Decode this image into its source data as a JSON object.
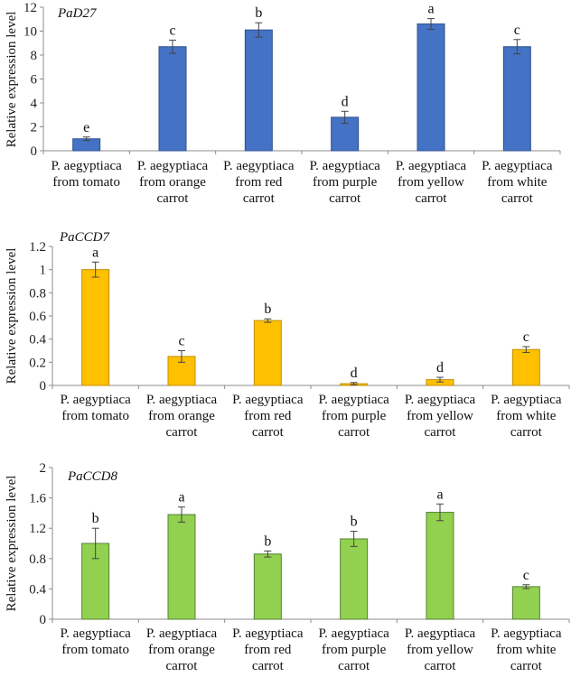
{
  "chart_data": [
    {
      "type": "bar",
      "title": "PaD27",
      "ylabel": "Relative  expression  level",
      "ylim": [
        0,
        12
      ],
      "yticks": [
        0,
        2,
        4,
        6,
        8,
        10,
        12
      ],
      "ytick_labels": [
        "0",
        "2",
        "4",
        "6",
        "8",
        "10",
        "12"
      ],
      "categories": [
        [
          "P. aegyptiaca",
          "from tomato"
        ],
        [
          "P. aegyptiaca",
          "from orange",
          "carrot"
        ],
        [
          "P. aegyptiaca",
          "from red",
          "carrot"
        ],
        [
          "P. aegyptiaca",
          "from purple",
          "carrot"
        ],
        [
          "P. aegyptiaca",
          "from yellow",
          "carrot"
        ],
        [
          "P. aegyptiaca",
          "from white",
          "carrot"
        ]
      ],
      "values": [
        1.0,
        8.7,
        10.1,
        2.8,
        10.6,
        8.7
      ],
      "errors": [
        0.15,
        0.55,
        0.6,
        0.5,
        0.45,
        0.6
      ],
      "letters": [
        "e",
        "c",
        "b",
        "d",
        "a",
        "c"
      ],
      "color": "#4472C4",
      "edge_color": "#2F528F",
      "grid": false
    },
    {
      "type": "bar",
      "title": "PaCCD7",
      "ylabel": "Relative  expression  level",
      "ylim": [
        0,
        1.2
      ],
      "yticks": [
        0,
        0.2,
        0.4,
        0.6,
        0.8,
        1.0,
        1.2
      ],
      "ytick_labels": [
        "0",
        "0.2",
        "0.4",
        "0.6",
        "0.8",
        "1",
        "1.2"
      ],
      "categories": [
        [
          "P. aegyptiaca",
          "from tomato"
        ],
        [
          "P. aegyptiaca",
          "from orange",
          "carrot"
        ],
        [
          "P. aegyptiaca",
          "from red",
          "carrot"
        ],
        [
          "P. aegyptiaca",
          "from purple",
          "carrot"
        ],
        [
          "P. aegyptiaca",
          "from yellow",
          "carrot"
        ],
        [
          "P. aegyptiaca",
          "from white",
          "carrot"
        ]
      ],
      "values": [
        1.0,
        0.25,
        0.56,
        0.015,
        0.05,
        0.31
      ],
      "errors": [
        0.065,
        0.05,
        0.015,
        0.01,
        0.02,
        0.025
      ],
      "letters": [
        "a",
        "c",
        "b",
        "d",
        "d",
        "c"
      ],
      "color": "#FFC000",
      "edge_color": "#BF9000",
      "grid": false
    },
    {
      "type": "bar",
      "title": "PaCCD8",
      "ylabel": "Relative  expression  level",
      "ylim": [
        0,
        2
      ],
      "yticks": [
        0,
        0.4,
        0.8,
        1.2,
        1.6,
        2.0
      ],
      "ytick_labels": [
        "0",
        "0.4",
        "0.8",
        "1.2",
        "1.6",
        "2"
      ],
      "categories": [
        [
          "P. aegyptiaca",
          "from tomato"
        ],
        [
          "P. aegyptiaca",
          "from orange",
          "carrot"
        ],
        [
          "P. aegyptiaca",
          "from red",
          "carrot"
        ],
        [
          "P. aegyptiaca",
          "from purple",
          "carrot"
        ],
        [
          "P. aegyptiaca",
          "from yellow",
          "carrot"
        ],
        [
          "P. aegyptiaca",
          "from white",
          "carrot"
        ]
      ],
      "values": [
        1.0,
        1.38,
        0.86,
        1.06,
        1.41,
        0.43
      ],
      "errors": [
        0.2,
        0.1,
        0.04,
        0.1,
        0.11,
        0.025
      ],
      "letters": [
        "b",
        "a",
        "b",
        "b",
        "a",
        "c"
      ],
      "color": "#92D050",
      "edge_color": "#548235",
      "grid": false
    }
  ]
}
